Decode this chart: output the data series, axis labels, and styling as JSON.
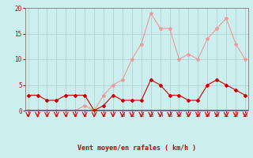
{
  "x": [
    0,
    1,
    2,
    3,
    4,
    5,
    6,
    7,
    8,
    9,
    10,
    11,
    12,
    13,
    14,
    15,
    16,
    17,
    18,
    19,
    20,
    21,
    22,
    23
  ],
  "wind_avg": [
    3,
    3,
    2,
    2,
    3,
    3,
    3,
    0,
    1,
    3,
    2,
    2,
    2,
    6,
    5,
    3,
    3,
    2,
    2,
    5,
    6,
    5,
    4,
    3
  ],
  "wind_gust": [
    0,
    0,
    0,
    0,
    0,
    0,
    1,
    0,
    3,
    5,
    6,
    10,
    13,
    19,
    16,
    16,
    10,
    11,
    10,
    14,
    16,
    18,
    13,
    10
  ],
  "xlabel": "Vent moyen/en rafales ( km/h )",
  "ylim": [
    0,
    20
  ],
  "yticks": [
    0,
    5,
    10,
    15,
    20
  ],
  "xticks": [
    0,
    1,
    2,
    3,
    4,
    5,
    6,
    7,
    8,
    9,
    10,
    11,
    12,
    13,
    14,
    15,
    16,
    17,
    18,
    19,
    20,
    21,
    22,
    23
  ],
  "bg_color": "#cceeee",
  "grid_color": "#aacccc",
  "line_avg_color": "#cc0000",
  "line_gust_color": "#ee9999",
  "tick_color": "#cc0000",
  "label_color": "#cc0000",
  "arrow_color": "#cc0000",
  "hline_color": "#cc0000"
}
